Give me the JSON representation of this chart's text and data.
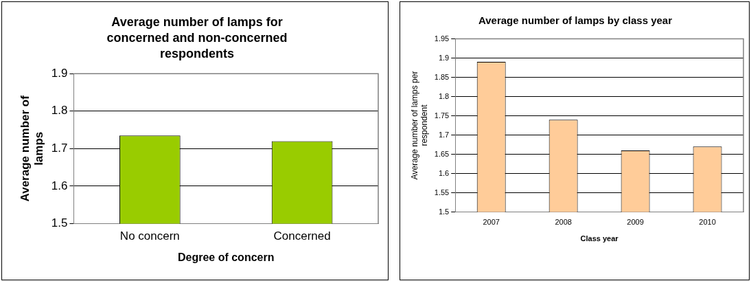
{
  "chart_data": [
    {
      "type": "bar",
      "title": "Average number of lamps for concerned and non-concerned respondents",
      "xlabel": "Degree of concern",
      "ylabel": "Average number of lamps",
      "categories": [
        "No concern",
        "Concerned"
      ],
      "values": [
        1.735,
        1.72
      ],
      "color": "#99cc00",
      "ylim": [
        1.5,
        1.9
      ],
      "yticks": [
        1.5,
        1.6,
        1.7,
        1.8,
        1.9
      ],
      "grid": "y"
    },
    {
      "type": "bar",
      "title": "Average number of lamps by class year",
      "xlabel": "Class year",
      "ylabel": "Average number of lamps per respondent",
      "categories": [
        "2007",
        "2008",
        "2009",
        "2010"
      ],
      "values": [
        1.89,
        1.74,
        1.66,
        1.67
      ],
      "color": "#ffcc99",
      "ylim": [
        1.5,
        1.95
      ],
      "yticks": [
        1.5,
        1.55,
        1.6,
        1.65,
        1.7,
        1.75,
        1.8,
        1.85,
        1.9,
        1.95
      ],
      "grid": "y"
    }
  ]
}
